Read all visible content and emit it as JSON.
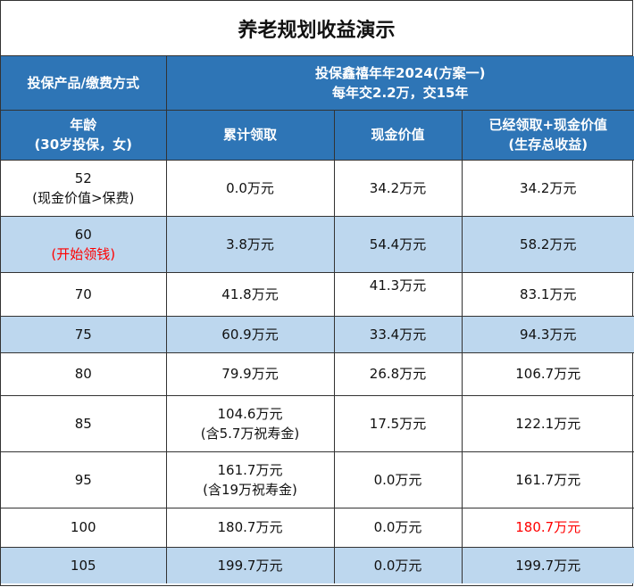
{
  "title": "养老规划收益演示",
  "header": {
    "product_label": "投保产品/缴费方式",
    "product_name": "投保鑫禧年年2024(方案一)",
    "payment": "每年交2.2万，交15年",
    "age_label": "年龄",
    "age_sub": "(30岁投保，女)",
    "col_cumulative": "累计领取",
    "col_cash": "现金价值",
    "col_total": "已经领取+现金价值",
    "col_total_sub": "(生存总收益)"
  },
  "rows": [
    {
      "age": "52",
      "note": "(现金价值>保费)",
      "cumulative": "0.0万元",
      "cash": "34.2万元",
      "total": "34.2万元"
    },
    {
      "age": "60",
      "note": "(开始领钱)",
      "cumulative": "3.8万元",
      "cash": "54.4万元",
      "total": "58.2万元"
    },
    {
      "age": "70",
      "cumulative": "41.8万元",
      "cash": "41.3万元",
      "total": "83.1万元"
    },
    {
      "age": "75",
      "cumulative": "60.9万元",
      "cash": "33.4万元",
      "total": "94.3万元"
    },
    {
      "age": "80",
      "cumulative": "79.9万元",
      "cash": "26.8万元",
      "total": "106.7万元"
    },
    {
      "age": "85",
      "cumulative": "104.6万元",
      "cumulative_note": "(含5.7万祝寿金)",
      "cash": "17.5万元",
      "total": "122.1万元"
    },
    {
      "age": "95",
      "cumulative": "161.7万元",
      "cumulative_note": "(含19万祝寿金)",
      "cash": "0.0万元",
      "total": "161.7万元"
    },
    {
      "age": "100",
      "cumulative": "180.7万元",
      "cash": "0.0万元",
      "total": "180.7万元"
    },
    {
      "age": "105",
      "cumulative": "199.7万元",
      "cash": "0.0万元",
      "total": "199.7万元"
    }
  ],
  "colors": {
    "header_bg": "#2e75b6",
    "alt_row_bg": "#bdd7ee",
    "highlight": "#ff0000"
  }
}
